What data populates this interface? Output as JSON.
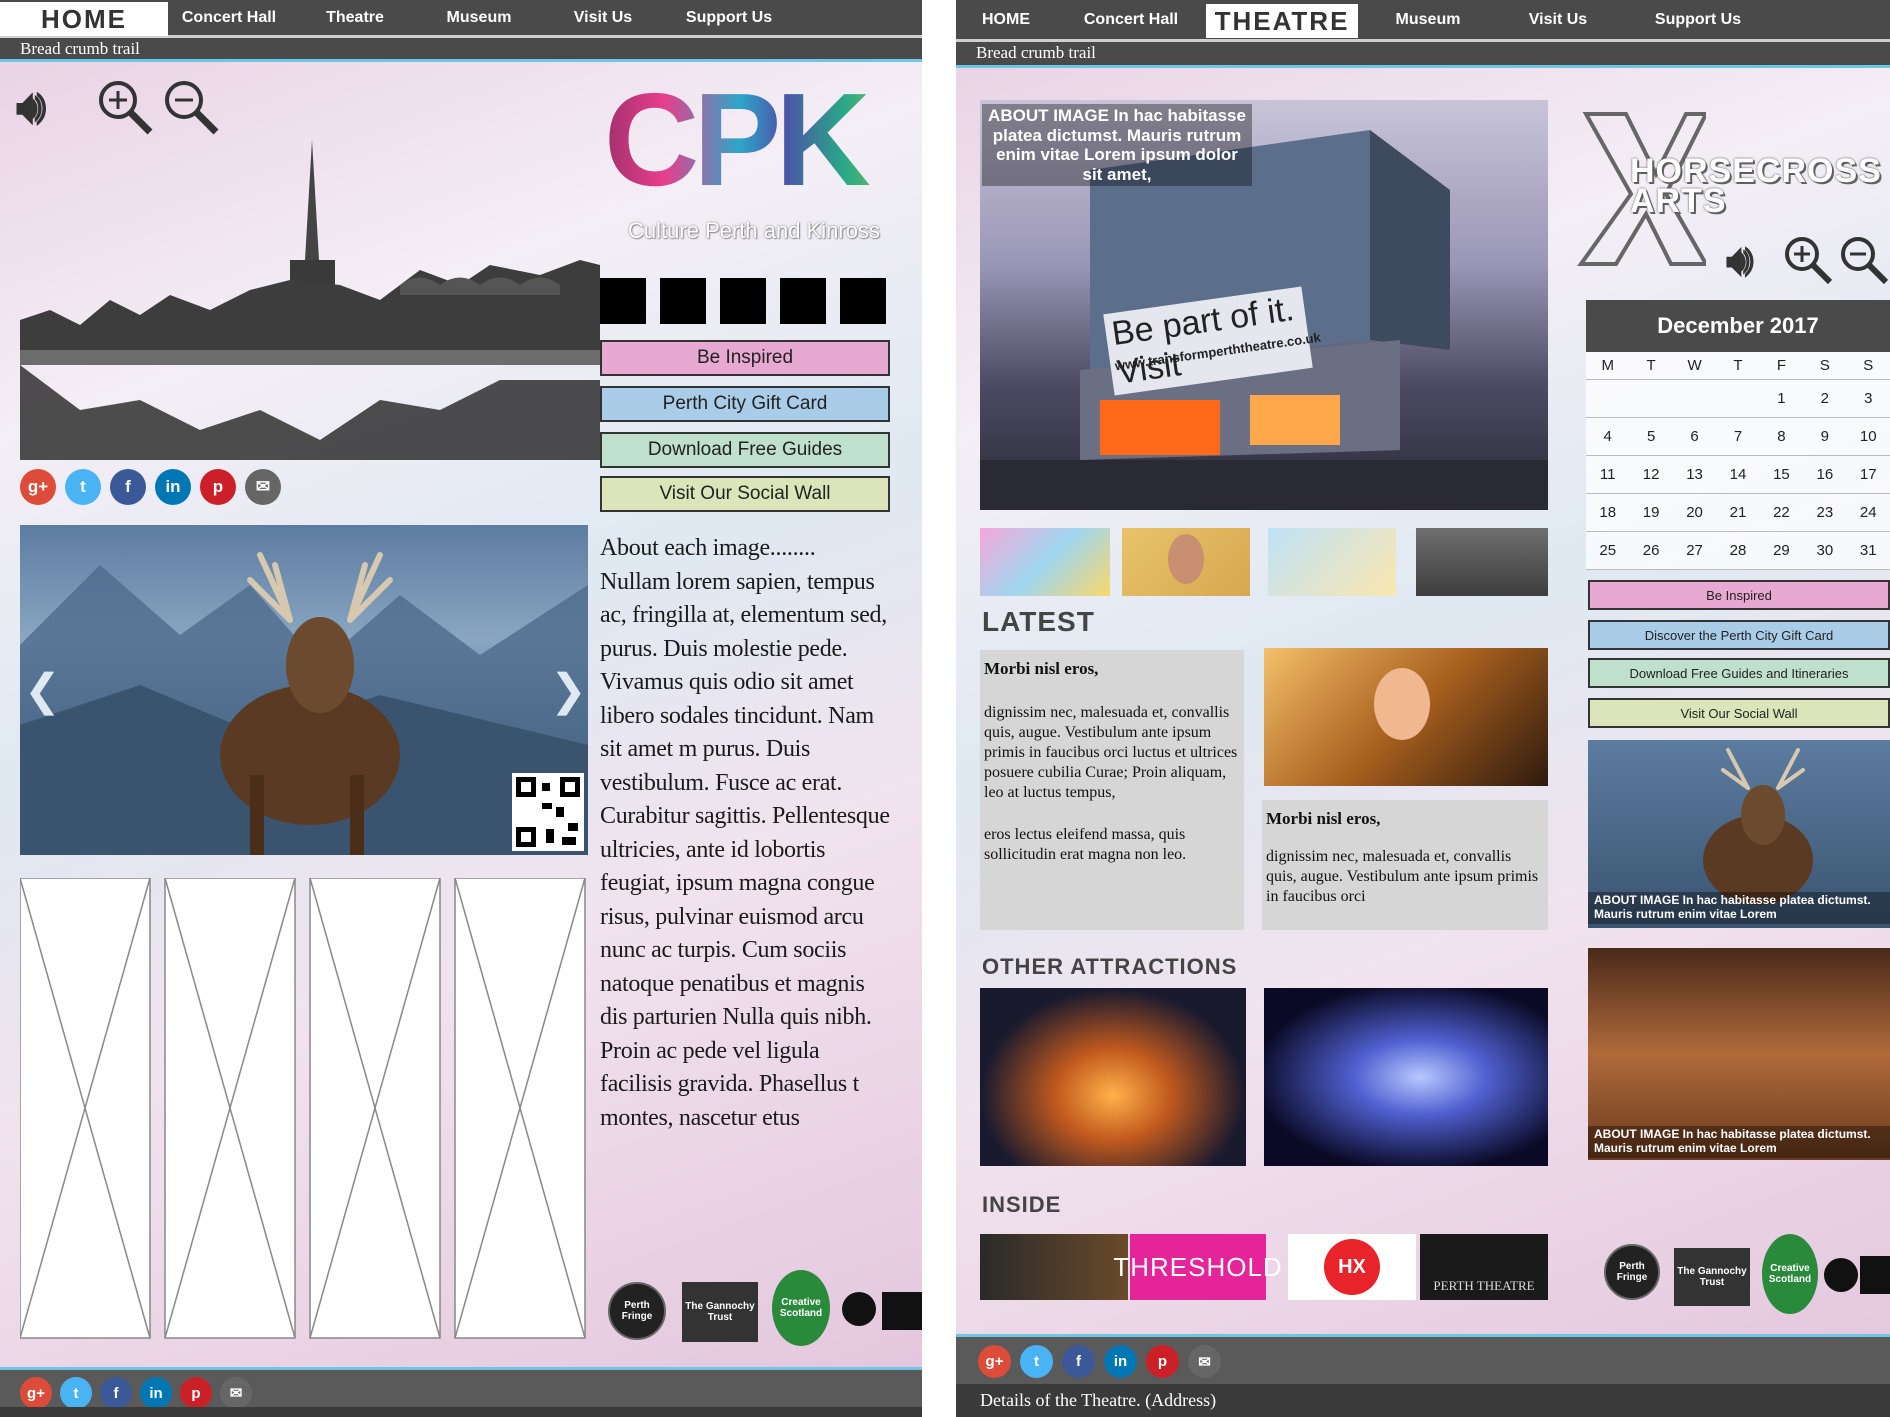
{
  "page1": {
    "nav": [
      "HOME",
      "Concert Hall",
      "Theatre",
      "Museum",
      "Visit Us",
      "Support Us"
    ],
    "breadcrumb": "Bread crumb trail",
    "logo": {
      "letters": "CPK",
      "tagline": "Culture Perth and Kinross"
    },
    "buttons": [
      "Be Inspired",
      "Perth City Gift Card",
      "Download Free Guides",
      "Visit Our Social Wall"
    ],
    "about_text": "About each image........ Nullam lorem sapien, tempus ac, fringilla at, elementum sed, purus. Duis molestie pede. Vivamus quis odio sit amet libero sodales tincidunt. Nam sit amet m purus. Duis vestibulum. Fusce ac erat. Curabitur sagittis. Pellentesque ultricies, ante id lobortis feugiat, ipsum magna congue risus, pulvinar euismod arcu nunc ac turpis. Cum sociis natoque penatibus et magnis dis parturien Nulla quis nibh. Proin ac pede vel ligula facilisis gravida. Phasellus t montes, nascetur etus",
    "carousel_prev": "❮",
    "carousel_next": "❯",
    "badges": [
      "Perth Fringe",
      "The Gannochy Trust",
      "Creative Scotland"
    ]
  },
  "page2": {
    "nav": [
      "HOME",
      "Concert Hall",
      "THEATRE",
      "Museum",
      "Visit Us",
      "Support Us"
    ],
    "breadcrumb": "Bread crumb trail",
    "hero_caption": "ABOUT IMAGE In hac habitasse platea dictumst. Mauris rutrum enim vitae Lorem ipsum dolor sit amet,",
    "hero_banner": "Be part of it. Visit",
    "hero_url": "www.transformperththeatre.co.uk",
    "hero_sign": "THEATRE",
    "brand": "HORSECROSS ARTS",
    "calendar": {
      "title": "December 2017",
      "dow": [
        "M",
        "T",
        "W",
        "T",
        "F",
        "S",
        "S"
      ],
      "days": [
        "",
        "",
        "",
        "",
        "1",
        "2",
        "3",
        "4",
        "5",
        "6",
        "7",
        "8",
        "9",
        "10",
        "11",
        "12",
        "13",
        "14",
        "15",
        "16",
        "17",
        "18",
        "19",
        "20",
        "21",
        "22",
        "23",
        "24",
        "25",
        "26",
        "27",
        "28",
        "29",
        "30",
        "31"
      ]
    },
    "buttons": [
      "Be Inspired",
      "Discover the Perth City Gift Card",
      "Download Free Guides and Itineraries",
      "Visit Our Social Wall"
    ],
    "latest_title": "LATEST",
    "news1": {
      "heading": "Morbi nisl eros,",
      "body": "dignissim nec, malesuada et, convallis quis, augue. Vestibulum ante ipsum primis in faucibus orci luctus et ultrices posuere cubilia Curae; Proin aliquam, leo at luctus tempus,",
      "body2": "eros lectus eleifend massa, quis sollicitudin erat magna non leo."
    },
    "news2": {
      "heading": "Morbi nisl eros,",
      "body": "dignissim nec, malesuada et, convallis quis, augue. Vestibulum ante ipsum primis in faucibus orci"
    },
    "other_title": "OTHER ATTRACTIONS",
    "inside_title": "INSIDE",
    "inside_threshold": "THRESHOLD",
    "inside_hx": "HX",
    "inside_perth": "PERTH THEATRE",
    "side_caption": "ABOUT IMAGE In hac habitasse platea dictumst. Mauris rutrum enim vitae Lorem",
    "footer_text": "Details of the Theatre. (Address)",
    "badges": [
      "Perth Fringe",
      "The Gannochy Trust",
      "Creative Scotland"
    ]
  },
  "icons": [
    "volume-icon",
    "zoom-in-icon",
    "zoom-out-icon"
  ],
  "social_labels": [
    "g+",
    "t",
    "f",
    "in",
    "p",
    "✉"
  ],
  "colors": {
    "pink_btn": "#e7a9d2",
    "blue_btn": "#a9cce8",
    "green_btn": "#bfe0cc",
    "yellow_btn": "#dbe5b9",
    "nav": "#4a4a4a",
    "accent": "#6ec6e6"
  }
}
